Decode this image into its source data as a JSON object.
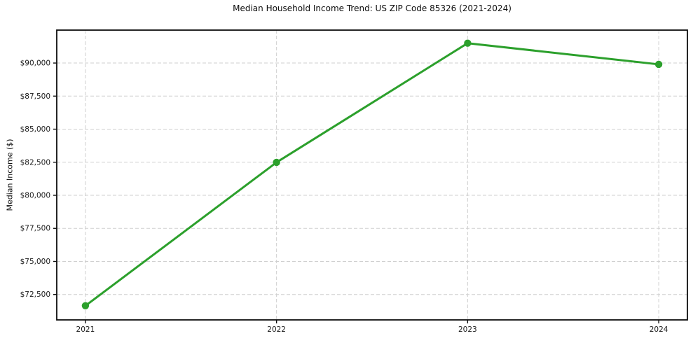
{
  "chart_data": {
    "type": "line",
    "title": "Median Household Income Trend: US ZIP Code 85326 (2021-2024)",
    "xlabel": "",
    "ylabel": "Median Income ($)",
    "x": [
      2021,
      2022,
      2023,
      2024
    ],
    "xtick_labels": [
      "2021",
      "2022",
      "2023",
      "2024"
    ],
    "values": [
      71650,
      82490,
      91500,
      89900
    ],
    "yticks": [
      72500,
      75000,
      77500,
      80000,
      82500,
      85000,
      87500,
      90000
    ],
    "ytick_labels": [
      "$72,500",
      "$75,000",
      "$77,500",
      "$80,000",
      "$82,500",
      "$85,000",
      "$87,500",
      "$90,000"
    ],
    "xlim": [
      2020.85,
      2024.15
    ],
    "ylim": [
      70580,
      92490
    ],
    "grid": true,
    "grid_style": "dashed",
    "legend": false,
    "colors": {
      "line": "#2ca02c",
      "marker": "#2ca02c",
      "grid": "#cfcfcf",
      "axis": "#0d0d0d",
      "tick_text": "#1a1a1a",
      "background": "#ffffff"
    }
  }
}
